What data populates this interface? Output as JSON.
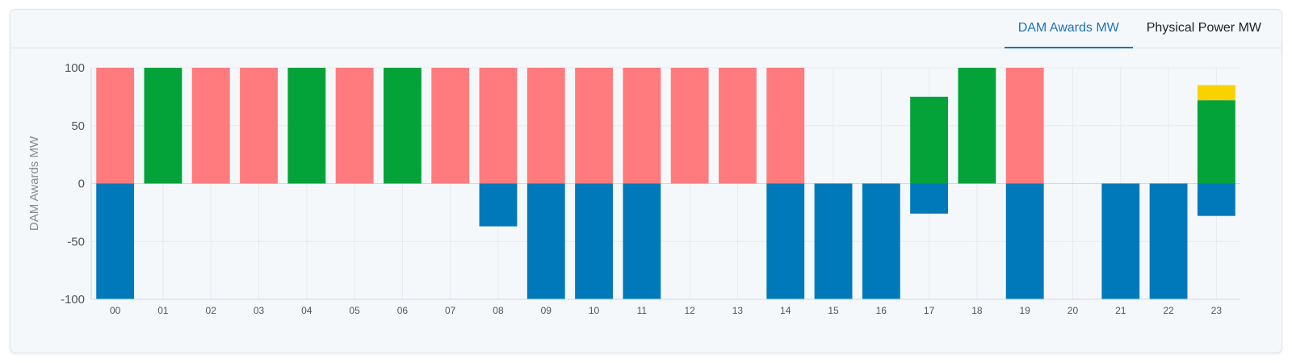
{
  "tabs": [
    {
      "label": "DAM Awards MW",
      "active": true
    },
    {
      "label": "Physical Power MW",
      "active": false
    }
  ],
  "colors": {
    "pink": "#ff7b7e",
    "green": "#03a33a",
    "blue": "#0079bb",
    "yellow": "#f9d200",
    "grid": "#e6ebef",
    "axis_text": "#555555",
    "label_text": "#8a8a8a"
  },
  "chart_data": {
    "type": "bar",
    "stacked": true,
    "ylabel": "DAM Awards MW",
    "xlabel": "",
    "ylim": [
      -100,
      100
    ],
    "yticks": [
      100,
      50,
      0,
      -50,
      -100
    ],
    "grid": true,
    "categories": [
      "00",
      "01",
      "02",
      "03",
      "04",
      "05",
      "06",
      "07",
      "08",
      "09",
      "10",
      "11",
      "12",
      "13",
      "14",
      "15",
      "16",
      "17",
      "18",
      "19",
      "20",
      "21",
      "22",
      "23"
    ],
    "series": [
      {
        "color": "pink",
        "values": [
          100,
          0,
          100,
          100,
          0,
          100,
          0,
          100,
          100,
          100,
          100,
          100,
          100,
          100,
          100,
          0,
          0,
          0,
          0,
          100,
          0,
          0,
          0,
          0
        ]
      },
      {
        "color": "green",
        "values": [
          0,
          100,
          0,
          0,
          100,
          0,
          100,
          0,
          0,
          0,
          0,
          0,
          0,
          0,
          0,
          0,
          0,
          75,
          100,
          0,
          0,
          0,
          0,
          72
        ]
      },
      {
        "color": "yellow",
        "values": [
          0,
          0,
          0,
          0,
          0,
          0,
          0,
          0,
          0,
          0,
          0,
          0,
          0,
          0,
          0,
          0,
          0,
          0,
          0,
          0,
          0,
          0,
          0,
          13
        ]
      },
      {
        "color": "blue",
        "values": [
          -100,
          0,
          0,
          0,
          0,
          0,
          0,
          0,
          -37,
          -100,
          -100,
          -100,
          0,
          0,
          -100,
          -100,
          -100,
          -26,
          0,
          -100,
          0,
          -100,
          -100,
          -28
        ]
      }
    ]
  }
}
